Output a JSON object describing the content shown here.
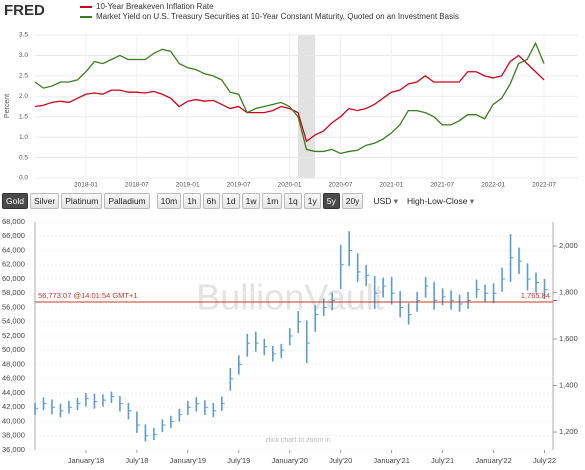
{
  "chart_data": [
    {
      "type": "line",
      "logo": "FRED",
      "y_label": "Percent",
      "x": [
        "2017-07",
        "2017-08",
        "2017-09",
        "2017-10",
        "2017-11",
        "2017-12",
        "2018-01",
        "2018-02",
        "2018-03",
        "2018-04",
        "2018-05",
        "2018-06",
        "2018-07",
        "2018-08",
        "2018-09",
        "2018-10",
        "2018-11",
        "2018-12",
        "2019-01",
        "2019-02",
        "2019-03",
        "2019-04",
        "2019-05",
        "2019-06",
        "2019-07",
        "2019-08",
        "2019-09",
        "2019-10",
        "2019-11",
        "2019-12",
        "2020-01",
        "2020-02",
        "2020-03",
        "2020-04",
        "2020-05",
        "2020-06",
        "2020-07",
        "2020-08",
        "2020-09",
        "2020-10",
        "2020-11",
        "2020-12",
        "2021-01",
        "2021-02",
        "2021-03",
        "2021-04",
        "2021-05",
        "2021-06",
        "2021-07",
        "2021-08",
        "2021-09",
        "2021-10",
        "2021-11",
        "2021-12",
        "2022-01",
        "2022-02",
        "2022-03",
        "2022-04",
        "2022-05",
        "2022-06",
        "2022-07"
      ],
      "series": [
        {
          "name": "10-Year Breakeven Inflation Rate",
          "color": "#d0021b",
          "values": [
            1.75,
            1.78,
            1.85,
            1.88,
            1.85,
            1.95,
            2.05,
            2.08,
            2.05,
            2.15,
            2.15,
            2.1,
            2.1,
            2.08,
            2.12,
            2.05,
            1.95,
            1.75,
            1.88,
            1.92,
            1.88,
            1.9,
            1.8,
            1.7,
            1.75,
            1.6,
            1.6,
            1.6,
            1.65,
            1.75,
            1.7,
            1.6,
            0.9,
            1.05,
            1.15,
            1.35,
            1.5,
            1.7,
            1.65,
            1.7,
            1.8,
            1.95,
            2.1,
            2.15,
            2.3,
            2.35,
            2.5,
            2.35,
            2.35,
            2.35,
            2.35,
            2.6,
            2.6,
            2.5,
            2.45,
            2.5,
            2.85,
            3.0,
            2.8,
            2.6,
            2.4
          ]
        },
        {
          "name": "Market Yield on U.S. Treasury Securities at 10-Year Constant Maturity, Quoted on an Investment Basis",
          "color": "#3a7d1e",
          "values": [
            2.35,
            2.2,
            2.25,
            2.35,
            2.35,
            2.4,
            2.6,
            2.85,
            2.8,
            2.9,
            3.0,
            2.9,
            2.9,
            2.9,
            3.05,
            3.15,
            3.1,
            2.8,
            2.7,
            2.65,
            2.55,
            2.5,
            2.4,
            2.1,
            2.05,
            1.6,
            1.7,
            1.75,
            1.8,
            1.85,
            1.75,
            1.5,
            0.7,
            0.65,
            0.65,
            0.7,
            0.6,
            0.65,
            0.68,
            0.8,
            0.85,
            0.95,
            1.1,
            1.3,
            1.65,
            1.65,
            1.6,
            1.5,
            1.3,
            1.3,
            1.4,
            1.55,
            1.55,
            1.45,
            1.8,
            1.95,
            2.3,
            2.8,
            2.9,
            3.3,
            2.8
          ]
        }
      ],
      "xlim": [
        "2017-07",
        "2022-11"
      ],
      "xticks": [
        "2018-01",
        "2018-07",
        "2019-01",
        "2019-07",
        "2020-01",
        "2020-07",
        "2021-01",
        "2021-07",
        "2022-01",
        "2022-07"
      ],
      "ylim": [
        0,
        3.5
      ],
      "yticks": [
        {
          "value": 0,
          "label": "0.0"
        },
        0.5,
        {
          "value": 1,
          "label": "1.0"
        },
        1.5,
        {
          "value": 2,
          "label": "2.0"
        },
        2.5,
        {
          "value": 3,
          "label": "3.0"
        },
        3.5
      ],
      "shaded": [
        "2020-02",
        "2020-04"
      ],
      "grid": true
    },
    {
      "type": "hlc",
      "color": "#5b9bd5",
      "watermark": "BullionVault",
      "note": "click chart to zoom in",
      "x": [
        "2017-07",
        "2017-08",
        "2017-09",
        "2017-10",
        "2017-11",
        "2017-12",
        "2018-01",
        "2018-02",
        "2018-03",
        "2018-04",
        "2018-05",
        "2018-06",
        "2018-07",
        "2018-08",
        "2018-09",
        "2018-10",
        "2018-11",
        "2018-12",
        "2019-01",
        "2019-02",
        "2019-03",
        "2019-04",
        "2019-05",
        "2019-06",
        "2019-07",
        "2019-08",
        "2019-09",
        "2019-10",
        "2019-11",
        "2019-12",
        "2020-01",
        "2020-02",
        "2020-03",
        "2020-04",
        "2020-05",
        "2020-06",
        "2020-07",
        "2020-08",
        "2020-09",
        "2020-10",
        "2020-11",
        "2020-12",
        "2021-01",
        "2021-02",
        "2021-03",
        "2021-04",
        "2021-05",
        "2021-06",
        "2021-07",
        "2021-08",
        "2021-09",
        "2021-10",
        "2021-11",
        "2021-12",
        "2022-01",
        "2022-02",
        "2022-03",
        "2022-04",
        "2022-05",
        "2022-06",
        "2022-07"
      ],
      "high": [
        42600,
        43400,
        43100,
        42500,
        42900,
        43300,
        44000,
        43900,
        43800,
        44200,
        43600,
        42600,
        41400,
        39600,
        39100,
        40300,
        40800,
        41800,
        42900,
        43400,
        43000,
        42600,
        43500,
        47500,
        49300,
        52300,
        52600,
        51600,
        50600,
        50900,
        53100,
        55500,
        54200,
        56300,
        57300,
        58100,
        64800,
        66700,
        63600,
        62000,
        60400,
        60200,
        60300,
        58300,
        56600,
        58200,
        60300,
        59600,
        58700,
        58400,
        57800,
        58200,
        59900,
        59200,
        59400,
        61600,
        66300,
        64400,
        62200,
        60900,
        60000
      ],
      "low": [
        40900,
        41600,
        41000,
        40600,
        41100,
        41600,
        42100,
        41800,
        42100,
        42600,
        41400,
        40300,
        38400,
        37200,
        37400,
        38500,
        39100,
        40000,
        40900,
        41400,
        40900,
        40600,
        41500,
        44300,
        46600,
        49100,
        49800,
        49300,
        48400,
        48900,
        50700,
        52400,
        48200,
        52600,
        54800,
        55600,
        58600,
        61800,
        59600,
        59000,
        55800,
        57400,
        56400,
        54600,
        53600,
        55400,
        57400,
        55700,
        56300,
        55700,
        55400,
        55800,
        57300,
        56800,
        56600,
        58200,
        59600,
        60700,
        58400,
        58100,
        57200
      ],
      "close": [
        41800,
        42500,
        42000,
        41500,
        42000,
        42500,
        43200,
        42800,
        43000,
        43500,
        42500,
        41500,
        39500,
        38000,
        38200,
        39500,
        40000,
        41000,
        42000,
        42500,
        42000,
        41500,
        42500,
        46000,
        48000,
        51000,
        51000,
        50500,
        49500,
        50000,
        52000,
        54000,
        51000,
        55000,
        56000,
        57000,
        62000,
        64000,
        61000,
        60500,
        58000,
        59000,
        58000,
        56000,
        55000,
        57000,
        59000,
        57000,
        57500,
        57000,
        56500,
        57000,
        58500,
        58000,
        58000,
        60000,
        63000,
        62500,
        60000,
        59500,
        58500
      ],
      "xlim": [
        "2017-07",
        "2022-08"
      ],
      "xticks": [
        {
          "value": "2018-01",
          "label": "January'18"
        },
        {
          "value": "2018-07",
          "label": "July'18"
        },
        {
          "value": "2019-01",
          "label": "January'19"
        },
        {
          "value": "2019-07",
          "label": "July'19"
        },
        {
          "value": "2020-01",
          "label": "January'20"
        },
        {
          "value": "2020-07",
          "label": "July'20"
        },
        {
          "value": "2021-01",
          "label": "January'21"
        },
        {
          "value": "2021-07",
          "label": "July'21"
        },
        {
          "value": "2022-01",
          "label": "January'22"
        },
        {
          "value": "2022-07",
          "label": "July'22"
        }
      ],
      "ylim": [
        36000,
        68000
      ],
      "yticks": [
        {
          "value": 36000,
          "label": "36,000"
        },
        {
          "value": 38000,
          "label": "38,000"
        },
        {
          "value": 40000,
          "label": "40,000"
        },
        {
          "value": 42000,
          "label": "42,000"
        },
        {
          "value": 44000,
          "label": "44,000"
        },
        {
          "value": 46000,
          "label": "46,000"
        },
        {
          "value": 48000,
          "label": "48,000"
        },
        {
          "value": 50000,
          "label": "50,000"
        },
        {
          "value": 52000,
          "label": "52,000"
        },
        {
          "value": 54000,
          "label": "54,000"
        },
        {
          "value": 56000,
          "label": "56,000"
        },
        {
          "value": 58000,
          "label": "58,000"
        },
        {
          "value": 60000,
          "label": "60,000"
        },
        {
          "value": 62000,
          "label": "62,000"
        },
        {
          "value": 64000,
          "label": "64,000"
        },
        {
          "value": 66000,
          "label": "66,000"
        },
        {
          "value": 68000,
          "label": "68,000"
        }
      ],
      "y2lim": [
        1122.6,
        2103.2
      ],
      "y2ticks": [
        {
          "value": 1200,
          "label": "1,200"
        },
        {
          "value": 1400,
          "label": "1,400"
        },
        {
          "value": 1600,
          "label": "1,600"
        },
        {
          "value": 1800,
          "label": "1,800"
        },
        {
          "value": 2000,
          "label": "2,000"
        }
      ],
      "reference": {
        "value": 56773.07,
        "label": "56,773.07 @14:01:54 GMT+1",
        "y2_value": 1765.84,
        "y2_label": "1,765.84",
        "color": "#c0392b"
      },
      "grid": true
    }
  ],
  "toolbar": {
    "metals": {
      "items": [
        "Gold",
        "Silver",
        "Platinum",
        "Palladium"
      ],
      "active": 0
    },
    "periods": {
      "items": [
        "10m",
        "1h",
        "6h",
        "1d",
        "1w",
        "1m",
        "1q",
        "1y",
        "5y",
        "20y"
      ],
      "active": 8
    },
    "currency": "USD",
    "chart_style": "High-Low-Close"
  }
}
